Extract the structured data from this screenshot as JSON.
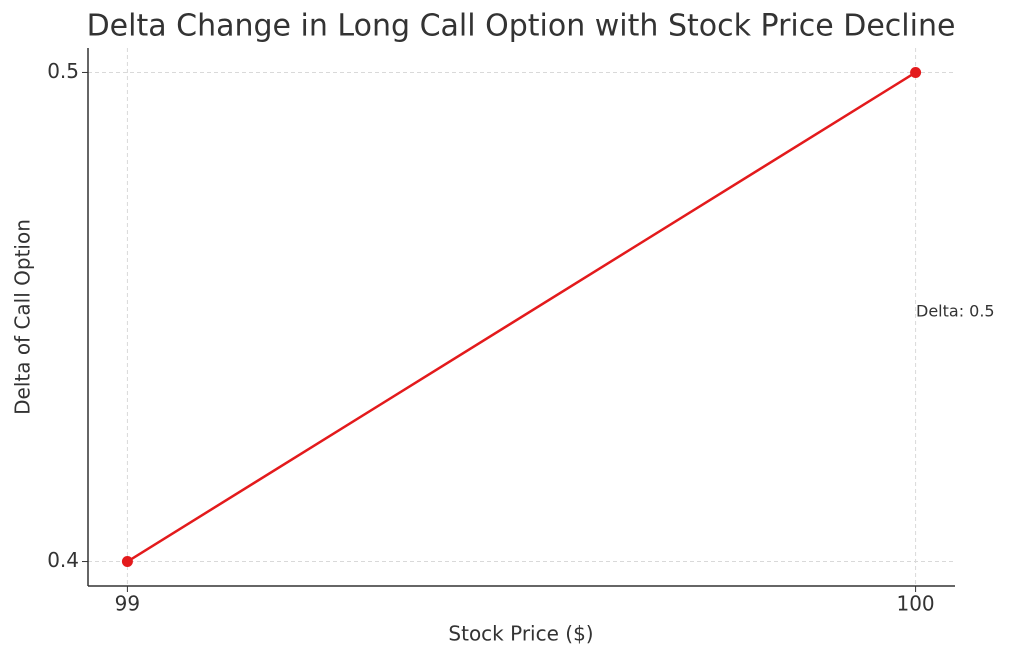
{
  "chart_data": {
    "type": "line",
    "title": "Delta Change in Long Call Option with Stock Price Decline",
    "x_label": "Stock Price ($)",
    "y_label": "Delta of Call Option",
    "annotation": "Delta: 0.5",
    "x": [
      99,
      100
    ],
    "series": [
      {
        "color": "#e31a1c",
        "values": [
          0.4,
          0.5
        ]
      }
    ],
    "xlim": [
      98.95,
      100.05
    ],
    "xticks": [
      99,
      100
    ],
    "ylim": [
      0.395,
      0.505
    ],
    "yticks": [
      0.4,
      0.5
    ],
    "grid": true
  }
}
